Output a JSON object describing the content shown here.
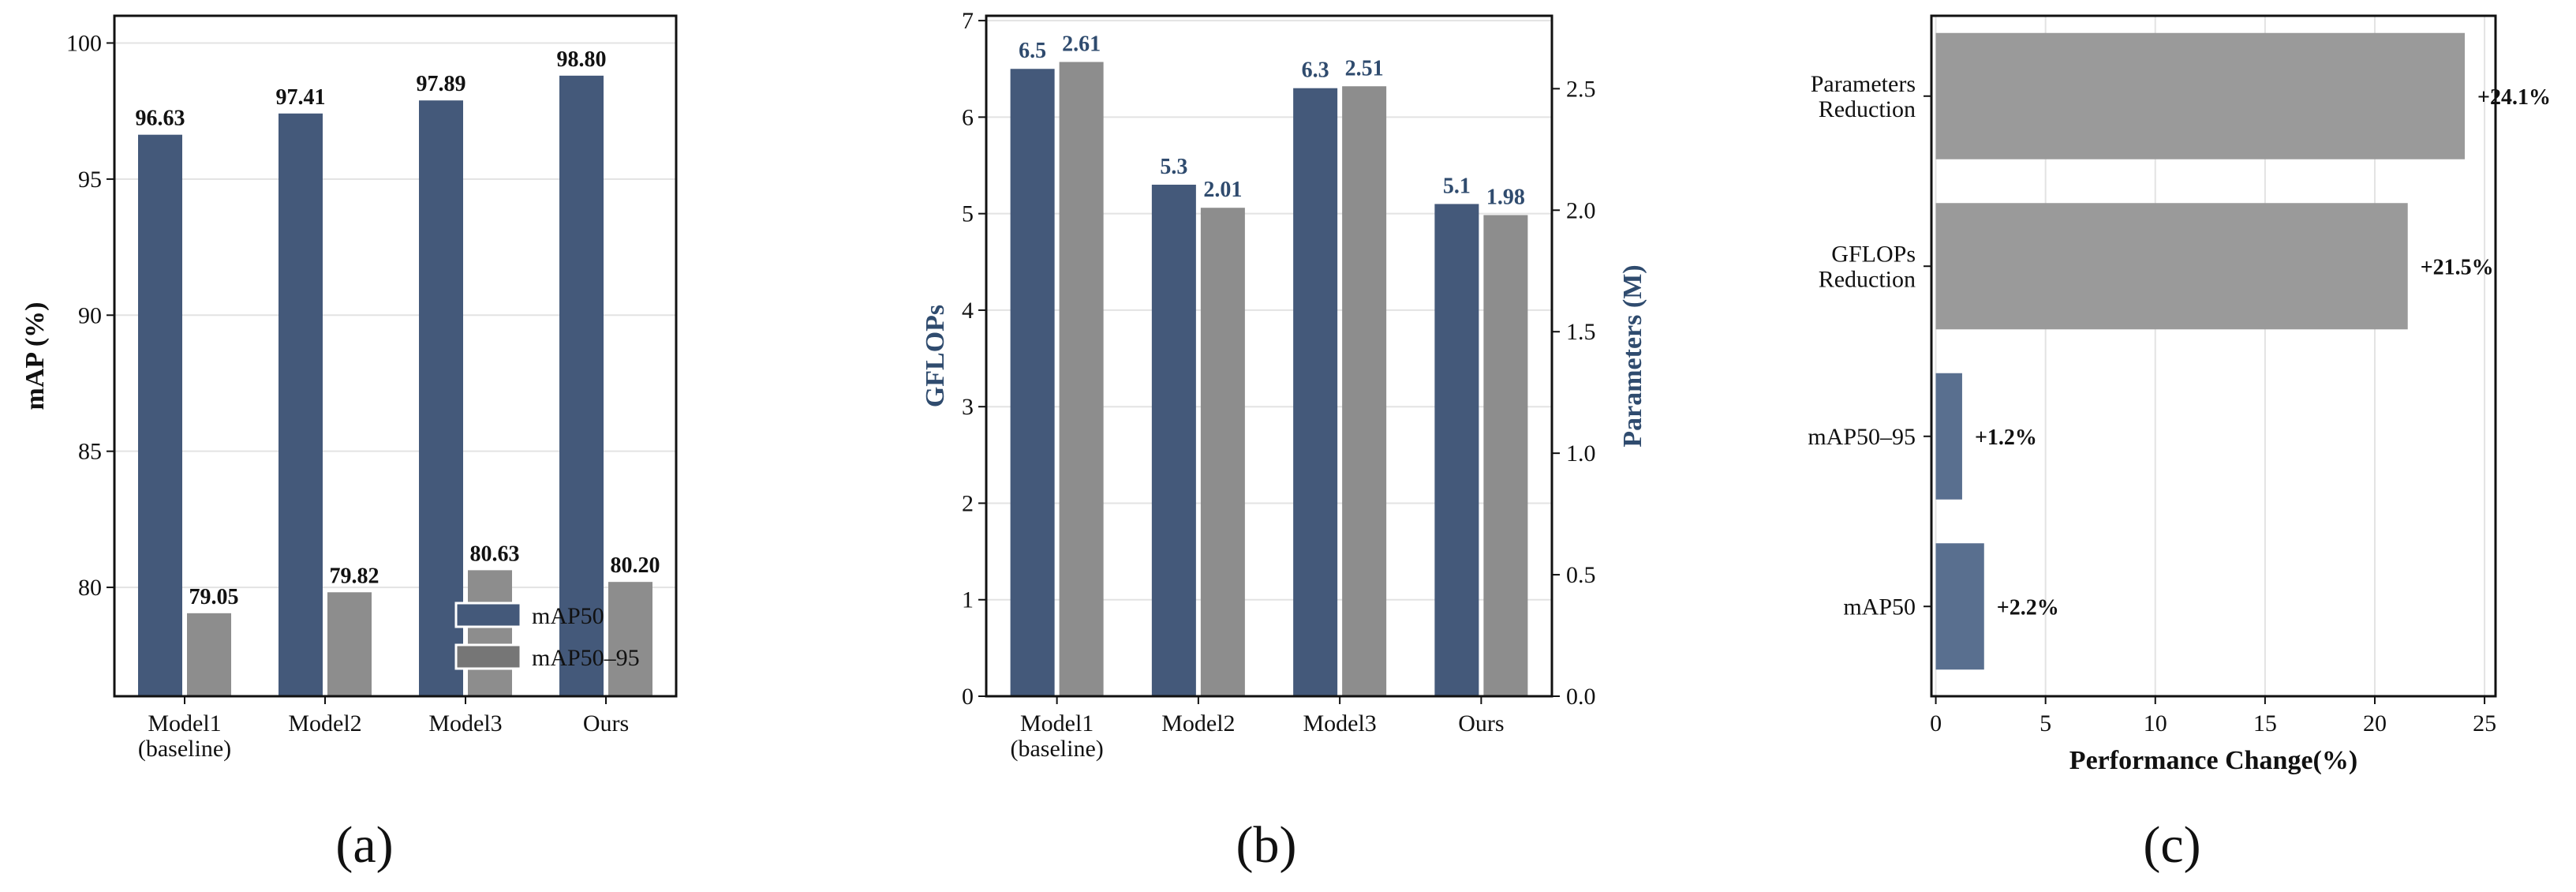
{
  "colors": {
    "navy": "#44597A",
    "gray": "#8D8D8D",
    "gray_c": "#9A9A9A",
    "blue_c": "#596F8F",
    "axis_blue": "#2F4B6E",
    "grid": "#E3E3E3"
  },
  "chart_data": [
    {
      "panel": "(a)",
      "type": "bar",
      "categories": [
        "Model1\n(baseline)",
        "Model2",
        "Model3",
        "Ours"
      ],
      "ylabel": "mAP (%)",
      "ylim": [
        76,
        101
      ],
      "yticks": [
        80,
        85,
        90,
        95,
        100
      ],
      "grid": true,
      "legend_position": "lower-right",
      "series": [
        {
          "name": "mAP50",
          "values": [
            96.63,
            97.41,
            97.89,
            98.8
          ],
          "labels": [
            "96.63",
            "97.41",
            "97.89",
            "98.80"
          ],
          "color": "#44597A"
        },
        {
          "name": "mAP50–95",
          "values": [
            79.05,
            79.82,
            80.63,
            80.2
          ],
          "labels": [
            "79.05",
            "79.82",
            "80.63",
            "80.20"
          ],
          "color": "#8D8D8D"
        }
      ]
    },
    {
      "panel": "(b)",
      "type": "bar",
      "categories": [
        "Model1\n(baseline)",
        "Model2",
        "Model3",
        "Ours"
      ],
      "ylabel": "GFLOPs",
      "ylabel_right": "Parameters (M)",
      "ylim": [
        0,
        7.05
      ],
      "ylim_right": [
        0,
        2.8
      ],
      "yticks": [
        0,
        1,
        2,
        3,
        4,
        5,
        6,
        7
      ],
      "yticks_right": [
        "0.0",
        "0.5",
        "1.0",
        "1.5",
        "2.0",
        "2.5"
      ],
      "grid": true,
      "series": [
        {
          "axis": "left",
          "values": [
            6.5,
            5.3,
            6.3,
            5.1
          ],
          "labels": [
            "6.5",
            "5.3",
            "6.3",
            "5.1"
          ],
          "color": "#44597A"
        },
        {
          "axis": "right",
          "values": [
            2.61,
            2.01,
            2.51,
            1.98
          ],
          "labels": [
            "2.61",
            "2.01",
            "2.51",
            "1.98"
          ],
          "color": "#8D8D8D"
        }
      ]
    },
    {
      "panel": "(c)",
      "type": "bar",
      "orientation": "horizontal",
      "categories": [
        "Parameters\nReduction",
        "GFLOPs\nReduction",
        "mAP50–95",
        "mAP50"
      ],
      "values": [
        24.1,
        21.5,
        1.2,
        2.2
      ],
      "labels": [
        "+24.1%",
        "+21.5%",
        "+1.2%",
        "+2.2%"
      ],
      "colors": [
        "#9A9A9A",
        "#9A9A9A",
        "#596F8F",
        "#596F8F"
      ],
      "xlabel": "Performance Change(%)",
      "xlim": [
        -0.2,
        25.5
      ],
      "xticks": [
        0,
        5,
        10,
        15,
        20,
        25
      ],
      "grid": true
    }
  ]
}
